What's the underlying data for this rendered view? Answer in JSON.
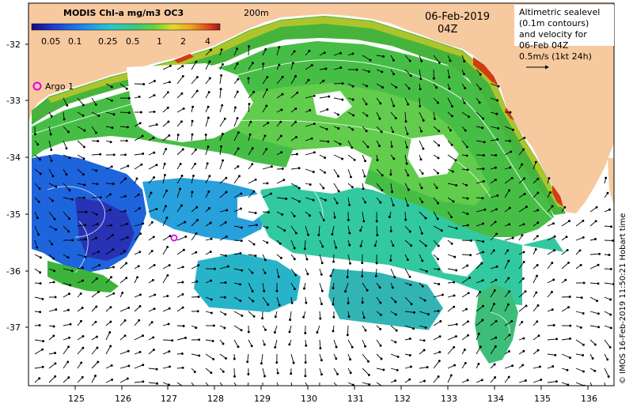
{
  "colorbar": {
    "title": "MODIS Chl-a mg/m3 OC3",
    "ticks": [
      "0.05",
      "0.1",
      "0.25",
      "0.5",
      "1",
      "2",
      "4"
    ]
  },
  "labels": {
    "isobath": "200m",
    "date": "06-Feb-2019",
    "time": "04Z",
    "argo": "Argo 1"
  },
  "legend": {
    "lines": [
      "Altimetric sealevel",
      "(0.1m contours)",
      "and velocity for",
      "06-Feb 04Z",
      "0.5m/s (1kt 24h)"
    ]
  },
  "credit": "© IMOS 16-Feb-2019 11:50:21 Hobart time",
  "axes": {
    "y_ticks": [
      "-32",
      "-33",
      "-34",
      "-35",
      "-36",
      "-37"
    ],
    "x_ticks": [
      "125",
      "126",
      "127",
      "128",
      "129",
      "130",
      "131",
      "132",
      "133",
      "134",
      "135",
      "136"
    ]
  },
  "colors": {
    "land": "#f7c99f",
    "argo": "#e000e0",
    "chl_low": "#1f3fc8",
    "chl_mid": "#28b4c8",
    "chl_high": "#3cb43c",
    "chl_coast": "#e0c030"
  }
}
